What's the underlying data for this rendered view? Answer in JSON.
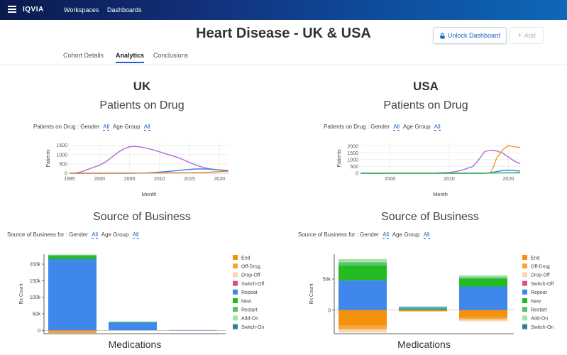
{
  "topbar": {
    "logo": "IQVIA",
    "nav": [
      "Workspaces",
      "Dashboards"
    ]
  },
  "header": {
    "title": "Heart Disease - UK & USA",
    "unlock_label": "Unlock Dashboard",
    "add_label": "Add"
  },
  "tabs": [
    "Cohort Details",
    "Analytics",
    "Conclusions"
  ],
  "active_tab": "Analytics",
  "panels": {
    "uk": {
      "country": "UK",
      "drug_title": "Patients on Drug",
      "drug_filter": {
        "prefix": "Patients on Drug : Gender",
        "gender": "All",
        "age_label": "Age Group",
        "age": "All"
      },
      "sob_title": "Source of Business",
      "sob_filter": {
        "prefix": "Source of Business for : Gender",
        "gender": "All",
        "age_label": "Age Group",
        "age": "All"
      }
    },
    "usa": {
      "country": "USA",
      "drug_title": "Patients on Drug",
      "drug_filter": {
        "prefix": "Patients on Drug : Gender",
        "gender": "All",
        "age_label": "Age Group",
        "age": "All"
      },
      "sob_title": "Source of Business",
      "sob_filter": {
        "prefix": "Source of Business for : Gender",
        "gender": "All",
        "age_label": "Age Group",
        "age": "All"
      }
    }
  },
  "chart_data": [
    {
      "id": "uk-line",
      "type": "line",
      "xlabel": "Month",
      "ylabel": "Patients",
      "xlim": [
        1995,
        2021.5
      ],
      "ylim": [
        0,
        1600
      ],
      "xticks": [
        1995,
        2000,
        2005,
        2010,
        2015,
        2020
      ],
      "yticks": [
        0,
        500,
        1000,
        1500
      ],
      "grid": true,
      "series": [
        {
          "color": "#b26ad6",
          "x": [
            1995,
            1996,
            1997,
            1998,
            1999,
            2000,
            2001,
            2002,
            2003,
            2004,
            2005,
            2006,
            2007,
            2008,
            2009,
            2010,
            2011,
            2012,
            2013,
            2014,
            2015,
            2016,
            2017,
            2018,
            2019,
            2020,
            2021,
            2021.5
          ],
          "y": [
            0,
            10,
            80,
            200,
            320,
            430,
            600,
            850,
            1100,
            1300,
            1420,
            1440,
            1400,
            1330,
            1250,
            1150,
            1050,
            950,
            850,
            720,
            580,
            450,
            340,
            260,
            210,
            180,
            160,
            150
          ]
        },
        {
          "color": "#3c7fe0",
          "x": [
            1995,
            2005,
            2008,
            2010,
            2012,
            2014,
            2016,
            2018,
            2020,
            2021.5
          ],
          "y": [
            0,
            0,
            20,
            60,
            110,
            180,
            230,
            230,
            180,
            120
          ]
        },
        {
          "color": "#e8862a",
          "x": [
            1995,
            2000,
            2005,
            2010,
            2015,
            2018,
            2020,
            2021.5
          ],
          "y": [
            0,
            5,
            10,
            15,
            25,
            50,
            90,
            110
          ]
        }
      ]
    },
    {
      "id": "usa-line",
      "type": "line",
      "xlabel": "Month",
      "ylabel": "Patients",
      "xlim": [
        1995,
        2022
      ],
      "ylim": [
        0,
        2200
      ],
      "xticks": [
        2000,
        2010,
        2020
      ],
      "yticks": [
        0,
        500,
        1000,
        1500,
        2000
      ],
      "grid": true,
      "series": [
        {
          "color": "#b26ad6",
          "x": [
            1995,
            2006,
            2008,
            2010,
            2011,
            2012,
            2013,
            2014,
            2015,
            2016,
            2017,
            2018,
            2019,
            2020,
            2021,
            2022
          ],
          "y": [
            0,
            5,
            20,
            60,
            120,
            200,
            350,
            500,
            1000,
            1600,
            1700,
            1650,
            1500,
            1200,
            900,
            700
          ]
        },
        {
          "color": "#f29a1b",
          "x": [
            1995,
            2016,
            2017,
            2017.5,
            2018,
            2019,
            2020,
            2021,
            2022
          ],
          "y": [
            0,
            0,
            50,
            500,
            1100,
            1700,
            2050,
            1950,
            1900
          ]
        },
        {
          "color": "#3c7fe0",
          "x": [
            1995,
            2016,
            2017,
            2018,
            2019,
            2020,
            2021,
            2022
          ],
          "y": [
            0,
            0,
            40,
            120,
            200,
            220,
            200,
            150
          ]
        },
        {
          "color": "#2fbf5a",
          "x": [
            1995,
            2016,
            2018,
            2020,
            2022
          ],
          "y": [
            0,
            0,
            20,
            40,
            50
          ]
        }
      ]
    },
    {
      "id": "uk-bar",
      "type": "bar",
      "stacked": true,
      "xlabel": "Medications",
      "ylabel": "Rx Count",
      "ylim": [
        -10000,
        230000
      ],
      "yticks": [
        0,
        50000,
        100000,
        150000,
        200000
      ],
      "ytick_labels": [
        "0",
        "50k",
        "100k",
        "150k",
        "200k"
      ],
      "categories": [
        "",
        "",
        ""
      ],
      "legend_placement": "right",
      "series": [
        {
          "name": "End",
          "color": "#f5900f",
          "values": [
            -4000,
            0,
            0
          ]
        },
        {
          "name": "Off-Drug",
          "color": "#f6a53e",
          "values": [
            -4000,
            0,
            0
          ]
        },
        {
          "name": "Drop-Off",
          "color": "#f9d7b1",
          "values": [
            0,
            0,
            0
          ]
        },
        {
          "name": "Switch-Off",
          "color": "#e34a8d",
          "values": [
            0,
            0,
            0
          ]
        },
        {
          "name": "Repeat",
          "color": "#3f87ea",
          "values": [
            215000,
            24000,
            1000
          ]
        },
        {
          "name": "New",
          "color": "#22bb22",
          "values": [
            10000,
            2000,
            0
          ]
        },
        {
          "name": "Restart",
          "color": "#55c46a",
          "values": [
            3000,
            0,
            0
          ]
        },
        {
          "name": "Add-On",
          "color": "#a6e2a8",
          "values": [
            1000,
            0,
            0
          ]
        },
        {
          "name": "Switch-On",
          "color": "#2f7f8f",
          "values": [
            0,
            0,
            0
          ]
        }
      ]
    },
    {
      "id": "usa-bar",
      "type": "bar",
      "stacked": true,
      "xlabel": "Medications",
      "ylabel": "Rx Count",
      "ylim": [
        -38000,
        90000
      ],
      "yticks": [
        0,
        50000
      ],
      "ytick_labels": [
        "0",
        "50k"
      ],
      "categories": [
        "",
        "",
        ""
      ],
      "legend_placement": "right",
      "series": [
        {
          "name": "End",
          "color": "#f5900f",
          "values": [
            -25000,
            -2000,
            -12000
          ]
        },
        {
          "name": "Off-Drug",
          "color": "#f6a53e",
          "values": [
            -6000,
            0,
            -3000
          ]
        },
        {
          "name": "Drop-Off",
          "color": "#f9d7b1",
          "values": [
            -5000,
            0,
            -3000
          ]
        },
        {
          "name": "Switch-Off",
          "color": "#e34a8d",
          "values": [
            0,
            0,
            0
          ]
        },
        {
          "name": "Repeat",
          "color": "#3f87ea",
          "values": [
            48000,
            2000,
            38000
          ]
        },
        {
          "name": "New",
          "color": "#22bb22",
          "values": [
            24000,
            1000,
            12000
          ]
        },
        {
          "name": "Restart",
          "color": "#55c46a",
          "values": [
            5000,
            500,
            3000
          ]
        },
        {
          "name": "Add-On",
          "color": "#a6e2a8",
          "values": [
            5000,
            500,
            3000
          ]
        },
        {
          "name": "Switch-On",
          "color": "#2f7f8f",
          "values": [
            0,
            1500,
            0
          ]
        }
      ]
    }
  ]
}
